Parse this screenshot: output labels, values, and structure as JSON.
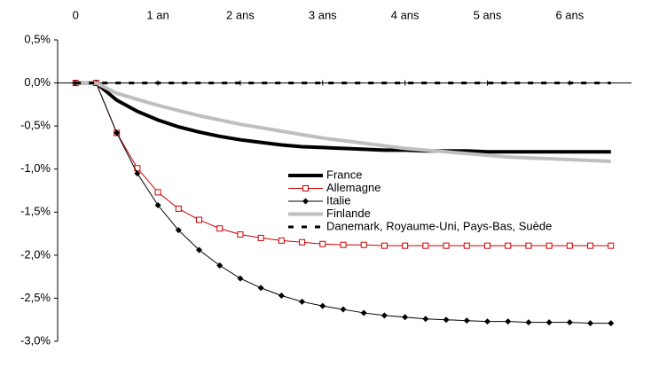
{
  "chart_data": {
    "type": "line",
    "x": [
      0,
      0.25,
      0.5,
      0.75,
      1,
      1.25,
      1.5,
      1.75,
      2,
      2.25,
      2.5,
      2.75,
      3,
      3.25,
      3.5,
      3.75,
      4,
      4.25,
      4.5,
      4.75,
      5,
      5.25,
      5.5,
      5.75,
      6,
      6.25,
      6.5
    ],
    "xlim": [
      -0.25,
      6.75
    ],
    "xticks": [
      0,
      {
        "value": 1,
        "label": "1 an"
      },
      {
        "value": 2,
        "label": "2 ans"
      },
      {
        "value": 3,
        "label": "3 ans"
      },
      {
        "value": 4,
        "label": "4 ans"
      },
      {
        "value": 5,
        "label": "5 ans"
      },
      {
        "value": 6,
        "label": "6 ans"
      }
    ],
    "ylim": [
      -3,
      0.5
    ],
    "yticks": [
      {
        "value": 0.5,
        "label": "0,5%"
      },
      {
        "value": 0,
        "label": "0,0%"
      },
      {
        "value": -0.5,
        "label": "-0,5%"
      },
      {
        "value": -1,
        "label": "-1,0%"
      },
      {
        "value": -1.5,
        "label": "-1,5%"
      },
      {
        "value": -2,
        "label": "-2,0%"
      },
      {
        "value": -2.5,
        "label": "-2,5%"
      },
      {
        "value": -3,
        "label": "-3,0%"
      }
    ],
    "grid": false,
    "series": [
      {
        "name": "France",
        "color": "#000000",
        "width": 4,
        "values": [
          0,
          0,
          -0.2,
          -0.33,
          -0.43,
          -0.51,
          -0.57,
          -0.62,
          -0.66,
          -0.69,
          -0.72,
          -0.74,
          -0.75,
          -0.76,
          -0.77,
          -0.78,
          -0.78,
          -0.79,
          -0.79,
          -0.79,
          -0.8,
          -0.8,
          -0.8,
          -0.8,
          -0.8,
          -0.8,
          -0.8
        ]
      },
      {
        "name": "Allemagne",
        "color": "#cc0000",
        "width": 1,
        "marker": "square",
        "values": [
          0,
          0,
          -0.58,
          -0.99,
          -1.27,
          -1.46,
          -1.59,
          -1.69,
          -1.76,
          -1.8,
          -1.83,
          -1.85,
          -1.87,
          -1.88,
          -1.88,
          -1.89,
          -1.89,
          -1.89,
          -1.89,
          -1.89,
          -1.89,
          -1.89,
          -1.89,
          -1.89,
          -1.89,
          -1.89,
          -1.89
        ]
      },
      {
        "name": "Italie",
        "color": "#000000",
        "width": 1,
        "marker": "diamond",
        "values": [
          0,
          0,
          -0.58,
          -1.05,
          -1.42,
          -1.71,
          -1.94,
          -2.12,
          -2.27,
          -2.38,
          -2.47,
          -2.54,
          -2.59,
          -2.63,
          -2.67,
          -2.7,
          -2.72,
          -2.74,
          -2.75,
          -2.76,
          -2.77,
          -2.77,
          -2.78,
          -2.78,
          -2.78,
          -2.79,
          -2.79
        ]
      },
      {
        "name": "Finlande",
        "color": "#bfbfbf",
        "width": 4,
        "values": [
          0,
          0,
          -0.12,
          -0.19,
          -0.26,
          -0.32,
          -0.38,
          -0.43,
          -0.48,
          -0.52,
          -0.56,
          -0.6,
          -0.64,
          -0.67,
          -0.7,
          -0.73,
          -0.76,
          -0.78,
          -0.8,
          -0.82,
          -0.84,
          -0.86,
          -0.87,
          -0.88,
          -0.89,
          -0.9,
          -0.91
        ]
      },
      {
        "name": "Danemark, Royaume-Uni, Pays-Bas, Suède",
        "color": "#000000",
        "width": 3,
        "dash": true,
        "values": [
          0,
          0,
          0,
          0,
          0,
          0,
          0,
          0,
          0,
          0,
          0,
          0,
          0,
          0,
          0,
          0,
          0,
          0,
          0,
          0,
          0,
          0,
          0,
          0,
          0,
          0,
          0
        ]
      }
    ]
  }
}
